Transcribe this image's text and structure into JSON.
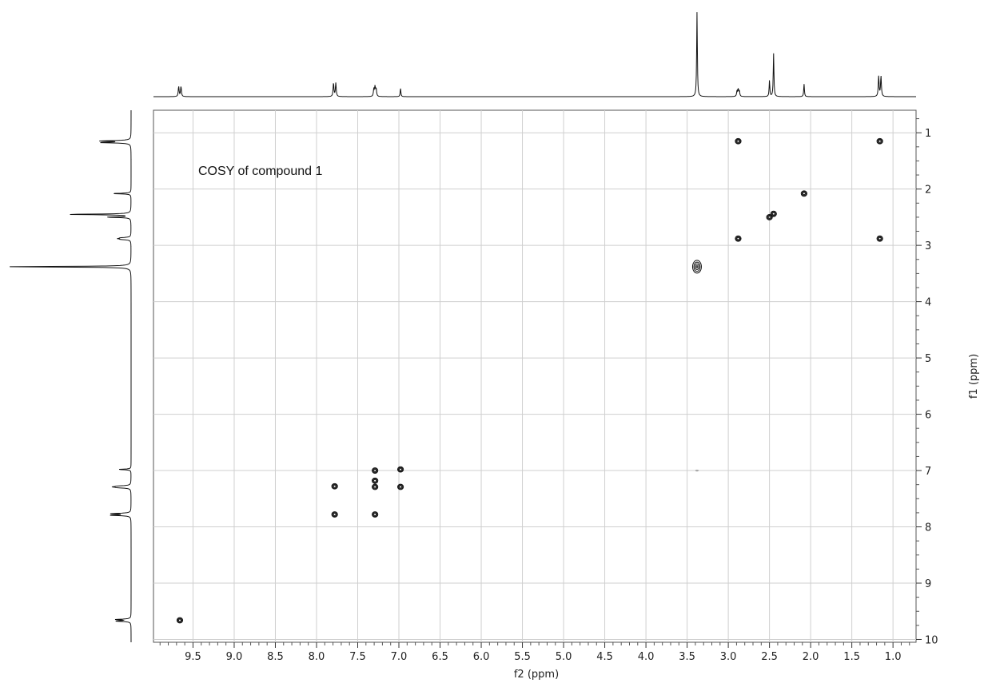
{
  "chart_data": {
    "type": "scatter",
    "subtype": "2D NMR COSY contour plot with 1D projections",
    "annotation": "COSY of compound 1",
    "xlabel": "f2 (ppm)",
    "ylabel": "f1 (ppm)",
    "xlim": [
      9.98,
      0.72
    ],
    "ylim": [
      0.6,
      10.05
    ],
    "x_axis_reversed": true,
    "x_ticks": [
      9.5,
      9.0,
      8.5,
      8.0,
      7.5,
      7.0,
      6.5,
      6.0,
      5.5,
      5.0,
      4.5,
      4.0,
      3.5,
      3.0,
      2.5,
      2.0,
      1.5,
      1.0
    ],
    "x_tick_labels": [
      "9.5",
      "9.0",
      "8.5",
      "8.0",
      "7.5",
      "7.0",
      "6.5",
      "6.0",
      "5.5",
      "5.0",
      "4.5",
      "4.0",
      "3.5",
      "3.0",
      "2.5",
      "2.0",
      "1.5",
      "1.0"
    ],
    "y_ticks": [
      1,
      2,
      3,
      4,
      5,
      6,
      7,
      8,
      9,
      10
    ],
    "y_tick_labels": [
      "1",
      "2",
      "3",
      "4",
      "5",
      "6",
      "7",
      "8",
      "9",
      "10"
    ],
    "y_axis_side": "right",
    "grid": true,
    "cross_peaks": [
      {
        "f2": 9.66,
        "f1": 9.66
      },
      {
        "f2": 7.78,
        "f1": 7.78
      },
      {
        "f2": 7.78,
        "f1": 7.28
      },
      {
        "f2": 7.29,
        "f1": 7.78
      },
      {
        "f2": 7.29,
        "f1": 7.29
      },
      {
        "f2": 7.29,
        "f1": 7.18
      },
      {
        "f2": 7.29,
        "f1": 7.0
      },
      {
        "f2": 6.98,
        "f1": 7.29
      },
      {
        "f2": 6.98,
        "f1": 6.98
      },
      {
        "f2": 3.38,
        "f1": 3.38
      },
      {
        "f2": 2.88,
        "f1": 1.15
      },
      {
        "f2": 2.88,
        "f1": 2.88
      },
      {
        "f2": 2.5,
        "f1": 2.5
      },
      {
        "f2": 2.45,
        "f1": 2.44
      },
      {
        "f2": 2.08,
        "f1": 2.08
      },
      {
        "f2": 1.16,
        "f1": 1.15
      },
      {
        "f2": 1.16,
        "f1": 2.88
      },
      {
        "f2": 3.38,
        "f1": 7.0
      }
    ],
    "projection_peaks": [
      {
        "ppm": 9.66,
        "height": 0.12,
        "multiplet": "doublet"
      },
      {
        "ppm": 7.78,
        "height": 0.16,
        "multiplet": "doublet"
      },
      {
        "ppm": 7.29,
        "height": 0.11,
        "multiplet": "multiplet"
      },
      {
        "ppm": 6.98,
        "height": 0.1,
        "multiplet": "singlet"
      },
      {
        "ppm": 3.38,
        "height": 1.0,
        "multiplet": "singlet"
      },
      {
        "ppm": 2.88,
        "height": 0.08,
        "multiplet": "multiplet"
      },
      {
        "ppm": 2.5,
        "height": 0.19,
        "multiplet": "singlet"
      },
      {
        "ppm": 2.45,
        "height": 0.51,
        "multiplet": "singlet"
      },
      {
        "ppm": 2.08,
        "height": 0.15,
        "multiplet": "singlet"
      },
      {
        "ppm": 1.16,
        "height": 0.24,
        "multiplet": "doublet"
      }
    ]
  }
}
